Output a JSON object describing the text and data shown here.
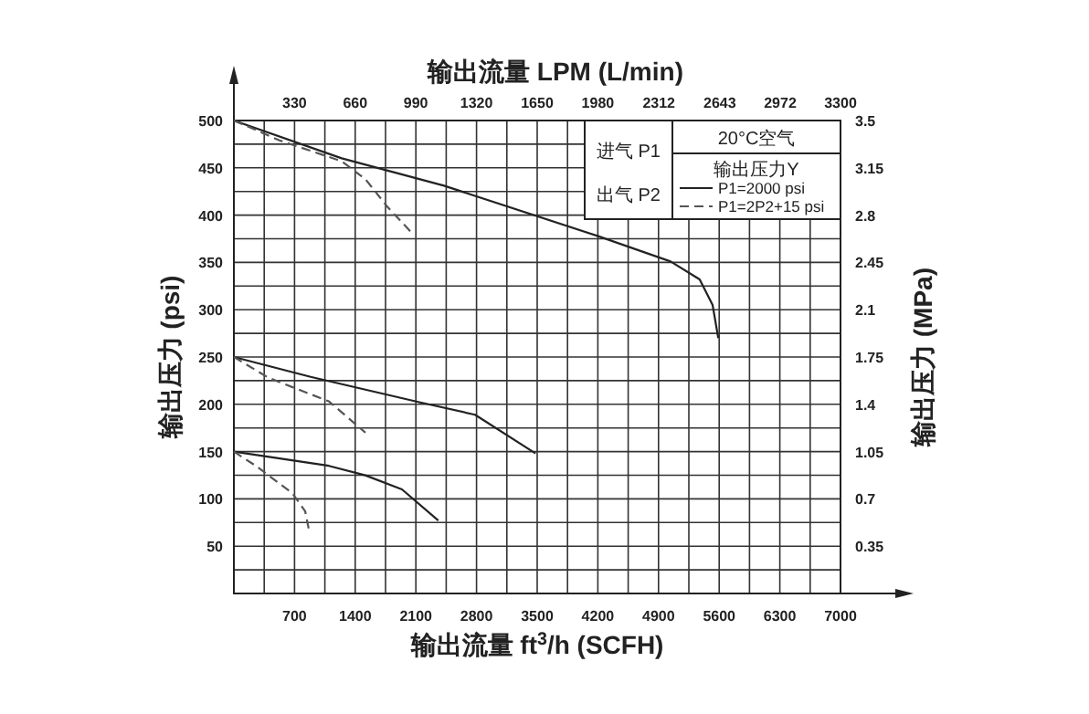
{
  "chart_data": {
    "type": "line",
    "x2label": "输出流量 LPM (L/min)",
    "xlabel": "输出流量 ft$^{3}$/h (SCFH)",
    "ylabel": "输出压力 (psi)",
    "y2label": "输出压力 (MPa)",
    "legend_title": "输出压力Y",
    "legend": "top right",
    "grid": true,
    "marker": "none",
    "annotations": [
      "进气 P1",
      "出气 P2",
      "20°C空气"
    ],
    "xlim": [
      0,
      7000
    ],
    "xticks": [
      {
        "value": 350,
        "label": null
      },
      700,
      {
        "value": 1050,
        "label": null
      },
      1400,
      {
        "value": 1750,
        "label": null
      },
      2100,
      {
        "value": 2450,
        "label": null
      },
      2800,
      {
        "value": 3150,
        "label": null
      },
      3500,
      {
        "value": 3850,
        "label": null
      },
      4200,
      {
        "value": 4550,
        "label": null
      },
      4900,
      {
        "value": 5250,
        "label": null
      },
      5600,
      {
        "value": 5950,
        "label": null
      },
      6300,
      {
        "value": 6650,
        "label": null
      },
      7000
    ],
    "x2lim": [
      0,
      3300
    ],
    "x2ticks": [
      330,
      660,
      990,
      1320,
      1650,
      1980,
      2312,
      2643,
      2972,
      3300
    ],
    "ylim": [
      0,
      500
    ],
    "yticks": [
      {
        "value": 25,
        "label": null
      },
      50,
      {
        "value": 75,
        "label": null
      },
      100,
      {
        "value": 125,
        "label": null
      },
      150,
      {
        "value": 175,
        "label": null
      },
      200,
      {
        "value": 225,
        "label": null
      },
      250,
      {
        "value": 275,
        "label": null
      },
      300,
      {
        "value": 325,
        "label": null
      },
      350,
      {
        "value": 375,
        "label": null
      },
      400,
      {
        "value": 425,
        "label": null
      },
      450,
      {
        "value": 475,
        "label": null
      },
      500
    ],
    "y2lim": [
      0,
      3.5
    ],
    "y2ticks": [
      0.35,
      0.7,
      1.05,
      1.4,
      1.75,
      2.1,
      2.45,
      2.8,
      3.15,
      3.5
    ],
    "series": [
      {
        "name": "P1=2000 psi",
        "color": "#222222",
        "line_style": "solid",
        "x": [
          0,
          1245,
          2425,
          4195,
          5040,
          5375,
          5525,
          5590
        ],
        "values": [
          500,
          460,
          431,
          378,
          351,
          332,
          305,
          270
        ]
      },
      {
        "name": "P1=2P2+15 psi",
        "color": "#555555",
        "line_style": "dashed",
        "x": [
          0,
          253,
          527,
          1245,
          1518,
          1770,
          2045
        ],
        "values": [
          500,
          490,
          479,
          457,
          438,
          409,
          382
        ]
      },
      {
        "color": "#222222",
        "line_style": "solid",
        "x": [
          0,
          885,
          2150,
          2783,
          3480
        ],
        "values": [
          250,
          229,
          202,
          189,
          148
        ]
      },
      {
        "color": "#555555",
        "line_style": "dashed",
        "x": [
          0,
          400,
          1096,
          1518
        ],
        "values": [
          250,
          228,
          203,
          170
        ]
      },
      {
        "color": "#222222",
        "line_style": "solid",
        "x": [
          0,
          1096,
          1518,
          1940,
          2360
        ],
        "values": [
          150,
          135,
          125,
          110,
          77
        ]
      },
      {
        "color": "#555555",
        "line_style": "dashed",
        "x": [
          0,
          253,
          675,
          822,
          865
        ],
        "values": [
          150,
          135,
          106,
          87,
          68
        ]
      }
    ]
  }
}
